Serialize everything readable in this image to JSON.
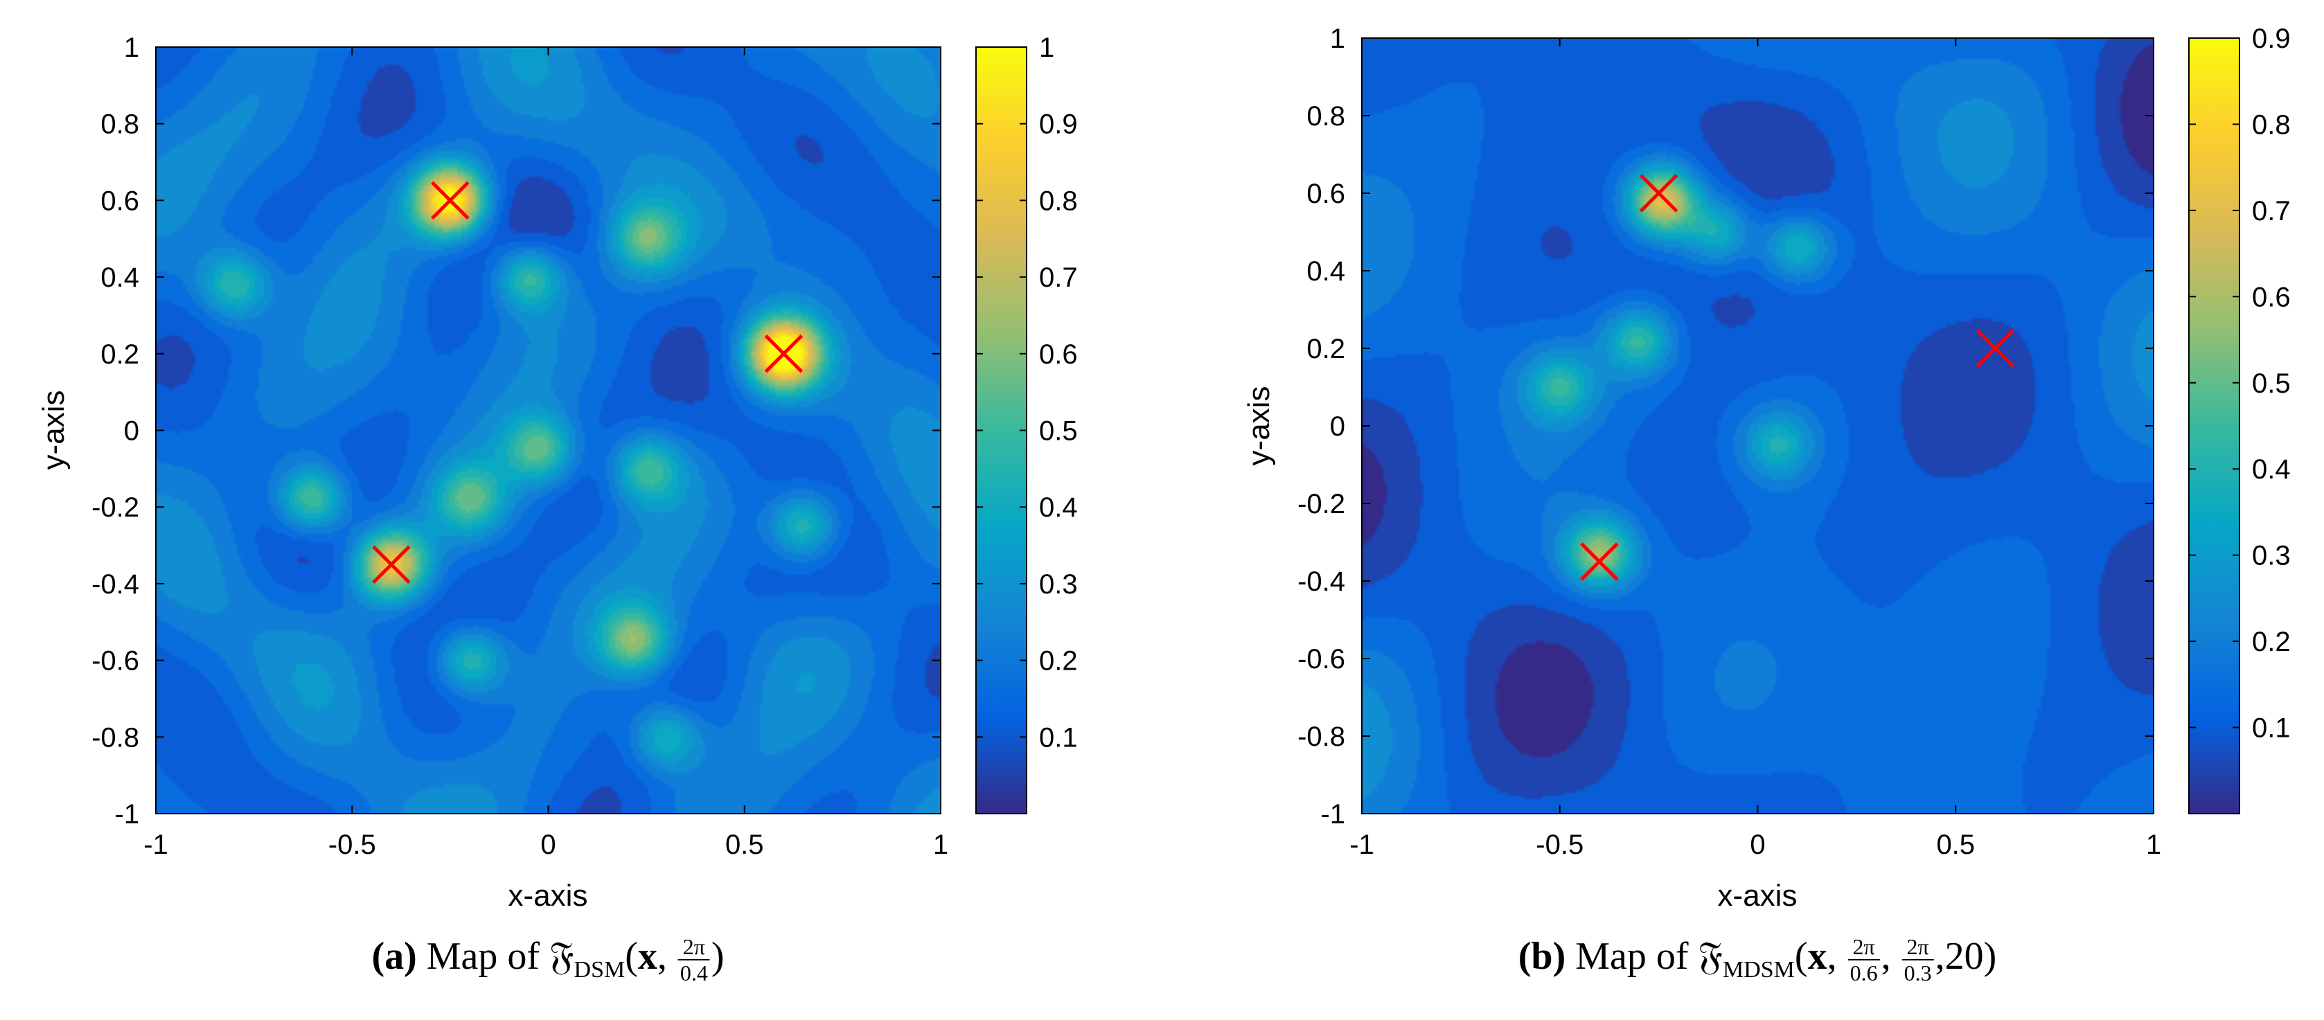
{
  "chart_data": [
    {
      "type": "heatmap",
      "panel": "a",
      "title": "",
      "xlabel": "x-axis",
      "ylabel": "y-axis",
      "xlim": [
        -1,
        1
      ],
      "ylim": [
        -1,
        1
      ],
      "x_ticks": [
        "-1",
        "-0.5",
        "0",
        "0.5",
        "1"
      ],
      "x_tick_values": [
        -1,
        -0.5,
        0,
        0.5,
        1
      ],
      "y_ticks": [
        "1",
        "0.8",
        "0.6",
        "0.4",
        "0.2",
        "0",
        "-0.2",
        "-0.4",
        "-0.6",
        "-0.8",
        "-1"
      ],
      "y_tick_values": [
        1,
        0.8,
        0.6,
        0.4,
        0.2,
        0,
        -0.2,
        -0.4,
        -0.6,
        -0.8,
        -1
      ],
      "colorbar": {
        "range": [
          0,
          1
        ],
        "ticks": [
          "1",
          "0.9",
          "0.8",
          "0.7",
          "0.6",
          "0.5",
          "0.4",
          "0.3",
          "0.2",
          "0.1"
        ],
        "tick_values": [
          1,
          0.9,
          0.8,
          0.7,
          0.6,
          0.5,
          0.4,
          0.3,
          0.2,
          0.1
        ]
      },
      "markers": [
        {
          "x": -0.25,
          "y": 0.6,
          "symbol": "x",
          "color": "#ff0000"
        },
        {
          "x": 0.6,
          "y": 0.2,
          "symbol": "x",
          "color": "#ff0000"
        },
        {
          "x": -0.4,
          "y": -0.35,
          "symbol": "x",
          "color": "#ff0000"
        }
      ],
      "peaks": [
        {
          "x": -0.25,
          "y": 0.6,
          "value": 0.85
        },
        {
          "x": 0.6,
          "y": 0.2,
          "value": 0.9
        },
        {
          "x": -0.4,
          "y": -0.35,
          "value": 0.65
        },
        {
          "x": -0.6,
          "y": -0.18,
          "value": 0.45
        },
        {
          "x": 0.22,
          "y": -0.55,
          "value": 0.42
        },
        {
          "x": -0.05,
          "y": 0.4,
          "value": 0.38
        },
        {
          "x": -0.02,
          "y": -0.05,
          "value": 0.38
        },
        {
          "x": 0.25,
          "y": 0.5,
          "value": 0.34
        },
        {
          "x": -0.2,
          "y": -0.6,
          "value": 0.36
        },
        {
          "x": 0.65,
          "y": -0.25,
          "value": 0.36
        },
        {
          "x": -0.8,
          "y": 0.38,
          "value": 0.33
        },
        {
          "x": 0.25,
          "y": -0.1,
          "value": 0.33
        },
        {
          "x": -0.2,
          "y": -0.18,
          "value": 0.32
        },
        {
          "x": 0.3,
          "y": -0.8,
          "value": 0.3
        }
      ],
      "background": 0.18,
      "ripple_freq": 15.7
    },
    {
      "type": "heatmap",
      "panel": "b",
      "title": "",
      "xlabel": "x-axis",
      "ylabel": "y-axis",
      "xlim": [
        -1,
        1
      ],
      "ylim": [
        -1,
        1
      ],
      "x_ticks": [
        "-1",
        "-0.5",
        "0",
        "0.5",
        "1"
      ],
      "x_tick_values": [
        -1,
        -0.5,
        0,
        0.5,
        1
      ],
      "y_ticks": [
        "1",
        "0.8",
        "0.6",
        "0.4",
        "0.2",
        "0",
        "-0.2",
        "-0.4",
        "-0.6",
        "-0.8",
        "-1"
      ],
      "y_tick_values": [
        1,
        0.8,
        0.6,
        0.4,
        0.2,
        0,
        -0.2,
        -0.4,
        -0.6,
        -0.8,
        -1
      ],
      "colorbar": {
        "range": [
          0,
          0.9
        ],
        "ticks": [
          "0.9",
          "0.8",
          "0.7",
          "0.6",
          "0.5",
          "0.4",
          "0.3",
          "0.2",
          "0.1"
        ],
        "tick_values": [
          0.9,
          0.8,
          0.7,
          0.6,
          0.5,
          0.4,
          0.3,
          0.2,
          0.1
        ]
      },
      "markers": [
        {
          "x": -0.25,
          "y": 0.6,
          "symbol": "x",
          "color": "#ff0000"
        },
        {
          "x": 0.6,
          "y": 0.2,
          "symbol": "x",
          "color": "#ff0000"
        },
        {
          "x": -0.4,
          "y": -0.35,
          "symbol": "x",
          "color": "#ff0000"
        }
      ],
      "peaks": [
        {
          "x": -0.24,
          "y": 0.58,
          "value": 0.6
        },
        {
          "x": -0.4,
          "y": -0.33,
          "value": 0.45
        },
        {
          "x": -0.3,
          "y": 0.22,
          "value": 0.32
        },
        {
          "x": 0.1,
          "y": 0.46,
          "value": 0.3
        },
        {
          "x": -0.1,
          "y": 0.5,
          "value": 0.28
        },
        {
          "x": -0.5,
          "y": 0.1,
          "value": 0.27
        },
        {
          "x": 0.05,
          "y": -0.05,
          "value": 0.25
        }
      ],
      "background": 0.12,
      "ripple_freq": 11
    }
  ],
  "captions": {
    "a": {
      "label": "(a)",
      "text": "Map of",
      "frak": "𝔉",
      "sub": "DSM",
      "open": "(",
      "x": "x",
      "sep": ",",
      "frac1_num": "2π",
      "frac1_den": "0.4",
      "close": ")"
    },
    "b": {
      "label": "(b)",
      "text": "Map of",
      "frak": "𝔉",
      "sub": "MDSM",
      "open": "(",
      "x": "x",
      "sep": ",",
      "frac1_num": "2π",
      "frac1_den": "0.6",
      "frac2_num": "2π",
      "frac2_den": "0.3",
      "last": "20",
      "close": ")"
    }
  },
  "colors": {
    "marker": "#ff0000",
    "axis": "#000000"
  }
}
